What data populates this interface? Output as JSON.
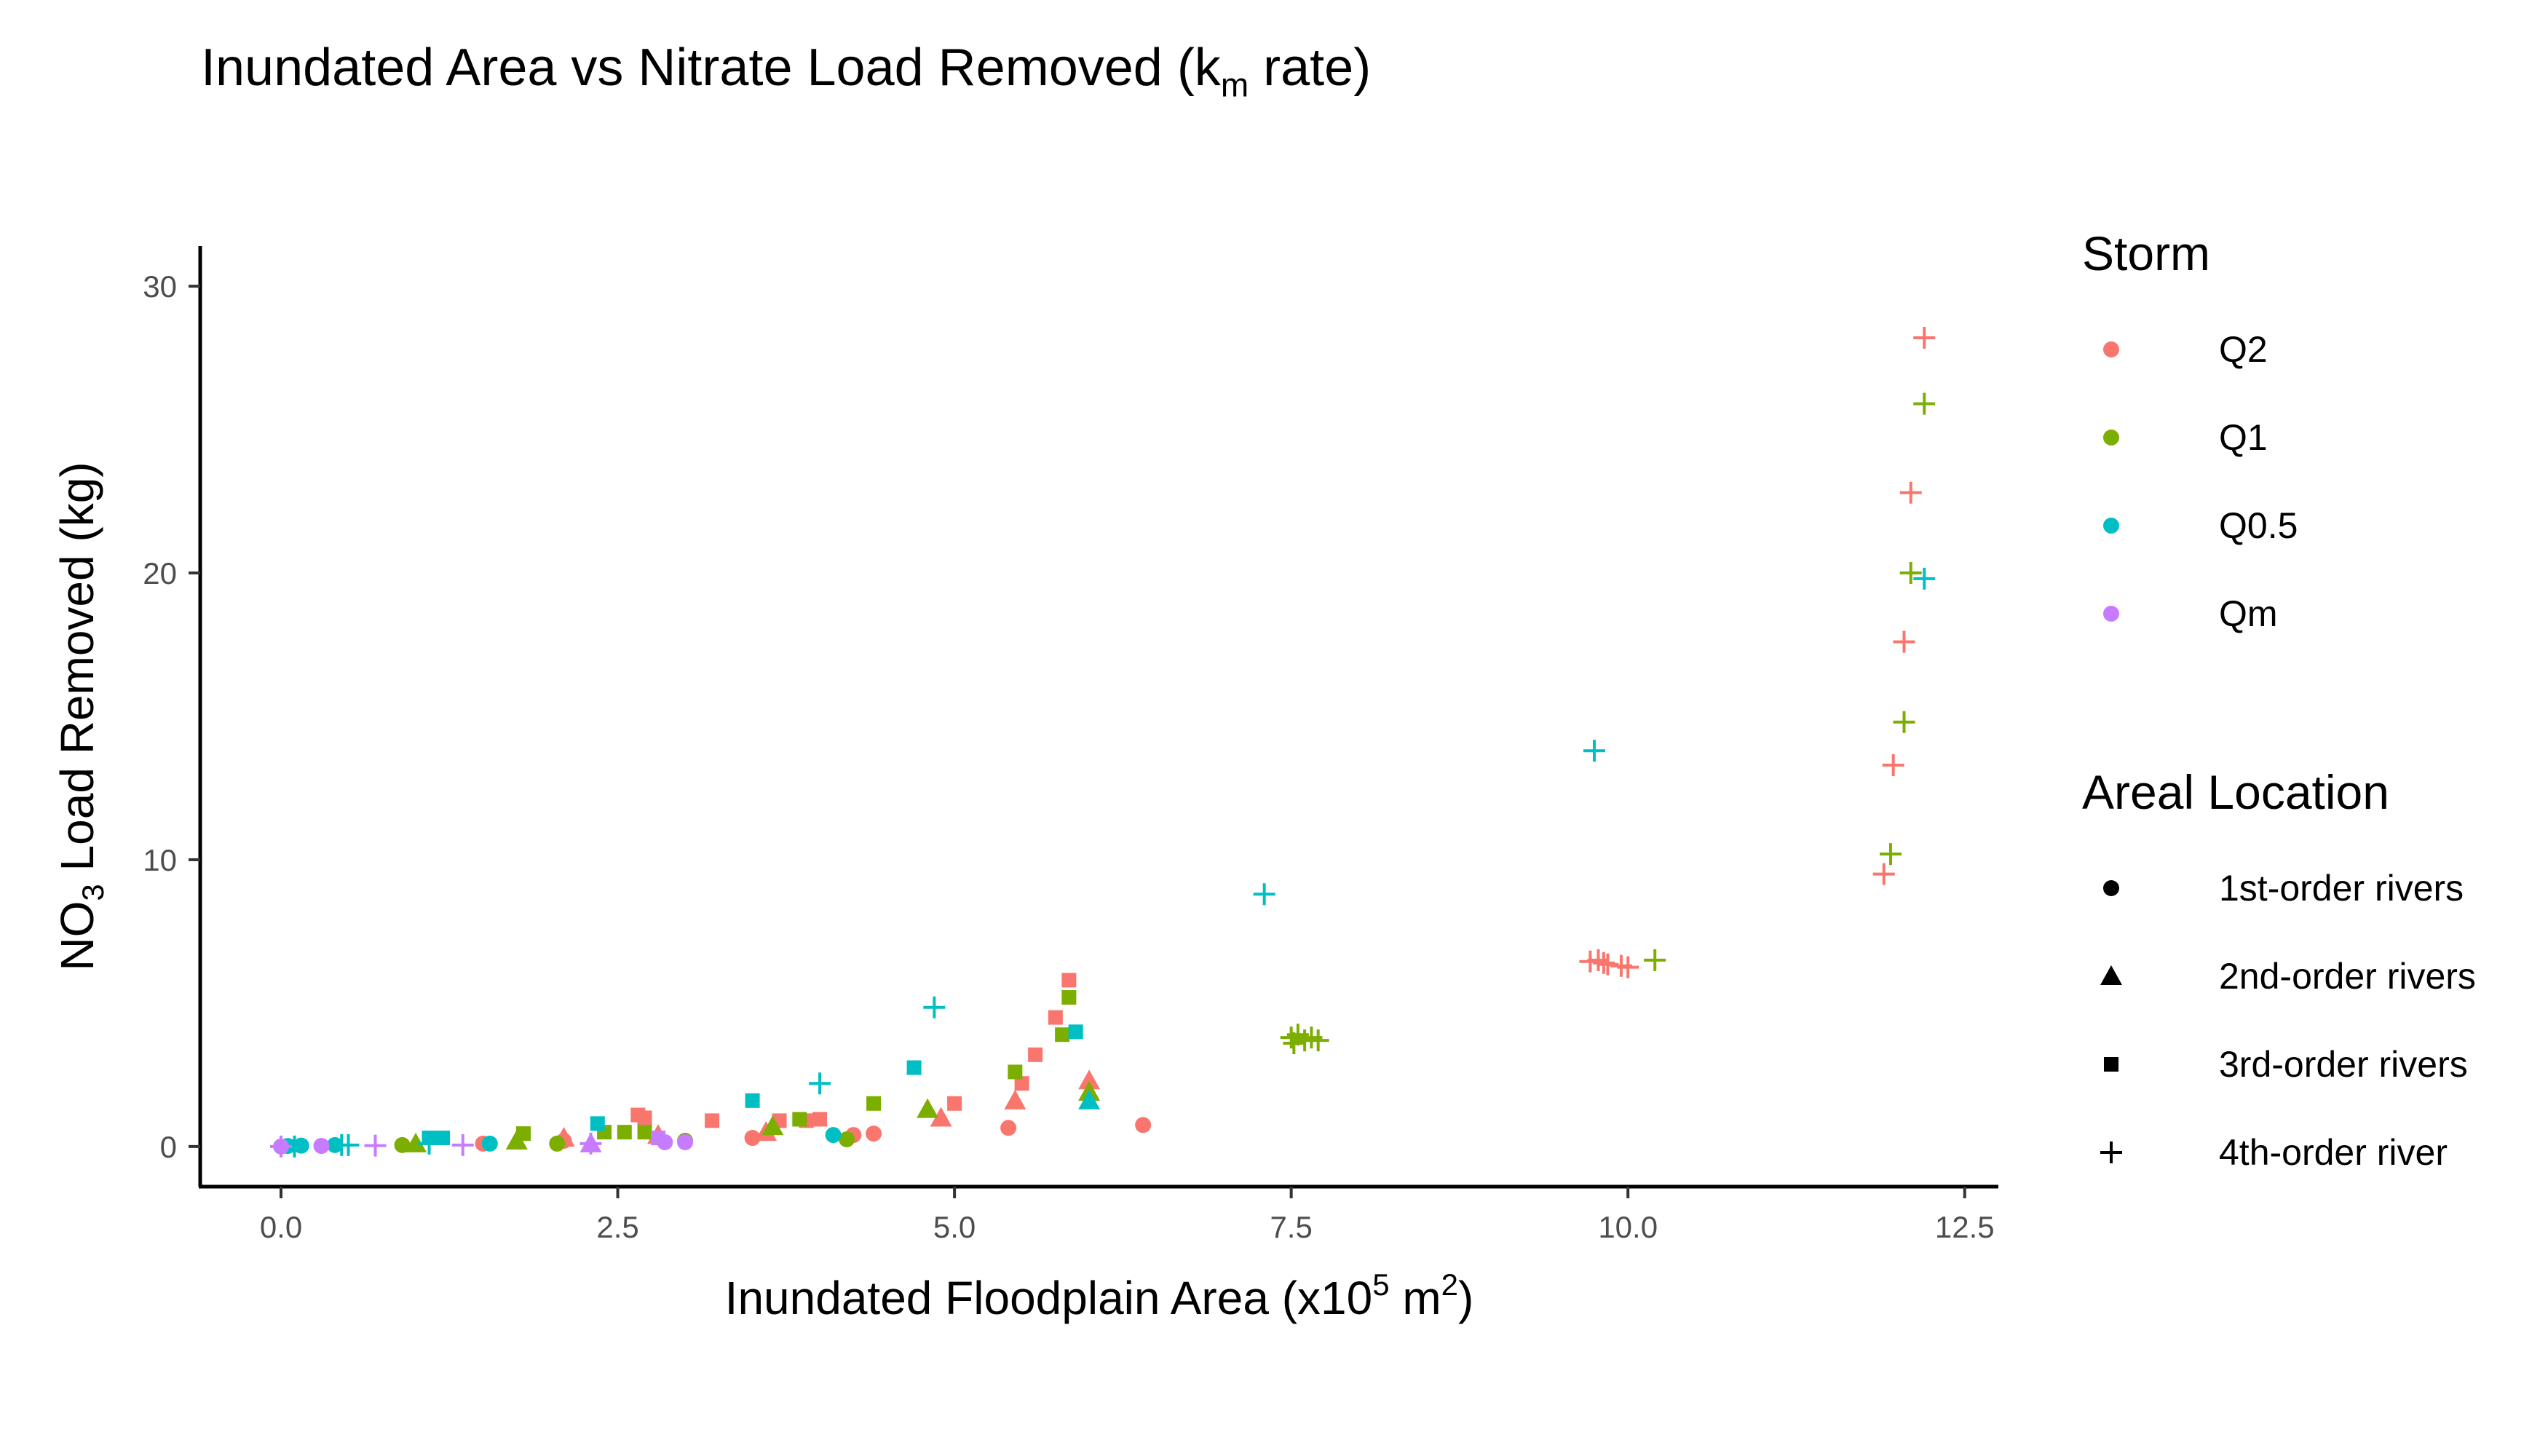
{
  "chart_data": {
    "type": "scatter",
    "title": "Inundated Area vs Nitrate Load Removed (k",
    "title_sub": "m",
    "title_tail": " rate)",
    "xlabel": "Inundated Floodplain Area (x10",
    "xlabel_sup": "5",
    "xlabel_mid": " m",
    "xlabel_sup2": "2",
    "xlabel_tail": ")",
    "ylabel": "NO",
    "ylabel_sub": "3",
    "ylabel_tail": " Load Removed (kg)",
    "xlim": [
      -0.6,
      12.75
    ],
    "ylim": [
      -1.4,
      31.4
    ],
    "x_ticks": [
      0.0,
      2.5,
      5.0,
      7.5,
      10.0,
      12.5
    ],
    "x_tick_labels": [
      "0.0",
      "2.5",
      "5.0",
      "7.5",
      "10.0",
      "12.5"
    ],
    "y_ticks": [
      0,
      10,
      20,
      30
    ],
    "y_tick_labels": [
      "0",
      "10",
      "20",
      "30"
    ],
    "grid": false,
    "legend_placement": "right",
    "storm_legend": {
      "title": "Storm",
      "items": [
        {
          "label": "Q2",
          "color": "#F8766D"
        },
        {
          "label": "Q1",
          "color": "#7CAE00"
        },
        {
          "label": "Q0.5",
          "color": "#00BFC4"
        },
        {
          "label": "Qm",
          "color": "#C77CFF"
        }
      ]
    },
    "location_legend": {
      "title": "Areal Location",
      "items": [
        {
          "label": "1st-order rivers",
          "shape": "circle"
        },
        {
          "label": "2nd-order rivers",
          "shape": "triangle"
        },
        {
          "label": "3rd-order rivers",
          "shape": "square"
        },
        {
          "label": "4th-order river",
          "shape": "plus"
        }
      ]
    },
    "series": [
      {
        "storm": "Q2",
        "location": "1st-order rivers",
        "points": [
          [
            1.5,
            0.1
          ],
          [
            2.1,
            0.2
          ],
          [
            3.5,
            0.3
          ],
          [
            4.25,
            0.4
          ],
          [
            4.4,
            0.45
          ],
          [
            5.4,
            0.65
          ],
          [
            6.4,
            0.75
          ]
        ]
      },
      {
        "storm": "Q2",
        "location": "2nd-order rivers",
        "points": [
          [
            2.1,
            0.3
          ],
          [
            2.8,
            0.4
          ],
          [
            3.6,
            0.5
          ],
          [
            4.9,
            1.0
          ],
          [
            5.45,
            1.6
          ],
          [
            6.0,
            2.3
          ]
        ]
      },
      {
        "storm": "Q2",
        "location": "3rd-order rivers",
        "points": [
          [
            2.65,
            1.1
          ],
          [
            2.7,
            1.0
          ],
          [
            3.2,
            0.9
          ],
          [
            3.7,
            0.9
          ],
          [
            3.9,
            0.9
          ],
          [
            4.0,
            0.95
          ],
          [
            5.0,
            1.5
          ],
          [
            5.5,
            2.2
          ],
          [
            5.6,
            3.2
          ],
          [
            5.75,
            4.5
          ],
          [
            5.85,
            5.8
          ]
        ]
      },
      {
        "storm": "Q2",
        "location": "4th-order river",
        "points": [
          [
            9.72,
            6.45
          ],
          [
            9.78,
            6.5
          ],
          [
            9.82,
            6.4
          ],
          [
            9.85,
            6.35
          ],
          [
            9.95,
            6.3
          ],
          [
            10.0,
            6.25
          ],
          [
            11.9,
            9.5
          ],
          [
            11.97,
            13.3
          ],
          [
            12.05,
            17.6
          ],
          [
            12.1,
            22.8
          ],
          [
            12.2,
            28.2
          ]
        ]
      },
      {
        "storm": "Q1",
        "location": "1st-order rivers",
        "points": [
          [
            0.9,
            0.05
          ],
          [
            2.05,
            0.1
          ],
          [
            3.0,
            0.2
          ],
          [
            4.2,
            0.25
          ]
        ]
      },
      {
        "storm": "Q1",
        "location": "2nd-order rivers",
        "points": [
          [
            1.0,
            0.1
          ],
          [
            1.75,
            0.2
          ],
          [
            3.65,
            0.7
          ],
          [
            4.8,
            1.3
          ],
          [
            6.0,
            1.9
          ]
        ]
      },
      {
        "storm": "Q1",
        "location": "3rd-order rivers",
        "points": [
          [
            1.8,
            0.45
          ],
          [
            2.4,
            0.5
          ],
          [
            2.55,
            0.5
          ],
          [
            2.7,
            0.5
          ],
          [
            3.85,
            0.95
          ],
          [
            4.4,
            1.5
          ],
          [
            5.45,
            2.6
          ],
          [
            5.8,
            3.9
          ],
          [
            5.85,
            5.2
          ]
        ]
      },
      {
        "storm": "Q1",
        "location": "4th-order river",
        "points": [
          [
            7.5,
            3.8
          ],
          [
            7.52,
            3.6
          ],
          [
            7.55,
            3.9
          ],
          [
            7.6,
            3.7
          ],
          [
            7.65,
            3.8
          ],
          [
            7.7,
            3.7
          ],
          [
            10.2,
            6.5
          ],
          [
            11.95,
            10.2
          ],
          [
            12.05,
            14.8
          ],
          [
            12.1,
            20.0
          ],
          [
            12.2,
            25.9
          ]
        ]
      },
      {
        "storm": "Q0.5",
        "location": "1st-order rivers",
        "points": [
          [
            0.05,
            0.02
          ],
          [
            0.15,
            0.03
          ],
          [
            0.4,
            0.05
          ],
          [
            1.55,
            0.1
          ],
          [
            4.1,
            0.4
          ]
        ]
      },
      {
        "storm": "Q0.5",
        "location": "2nd-order rivers",
        "points": [
          [
            6.0,
            1.6
          ]
        ]
      },
      {
        "storm": "Q0.5",
        "location": "3rd-order rivers",
        "points": [
          [
            1.1,
            0.3
          ],
          [
            1.2,
            0.3
          ],
          [
            2.35,
            0.8
          ],
          [
            3.5,
            1.6
          ],
          [
            4.7,
            2.75
          ],
          [
            5.9,
            4.0
          ]
        ]
      },
      {
        "storm": "Q0.5",
        "location": "4th-order river",
        "points": [
          [
            0.1,
            0.0
          ],
          [
            0.45,
            0.05
          ],
          [
            0.5,
            0.05
          ],
          [
            1.1,
            0.1
          ],
          [
            4.0,
            2.2
          ],
          [
            4.85,
            4.85
          ],
          [
            7.3,
            8.8
          ],
          [
            9.75,
            13.8
          ],
          [
            12.2,
            19.8
          ]
        ]
      },
      {
        "storm": "Qm",
        "location": "1st-order rivers",
        "points": [
          [
            0.0,
            0.0
          ],
          [
            0.3,
            0.02
          ],
          [
            2.85,
            0.15
          ],
          [
            3.0,
            0.15
          ]
        ]
      },
      {
        "storm": "Qm",
        "location": "2nd-order rivers",
        "points": [
          [
            2.3,
            0.1
          ]
        ]
      },
      {
        "storm": "Qm",
        "location": "3rd-order rivers",
        "points": [
          [
            2.8,
            0.3
          ]
        ]
      },
      {
        "storm": "Qm",
        "location": "4th-order river",
        "points": [
          [
            0.0,
            0.0
          ],
          [
            0.7,
            0.03
          ],
          [
            1.35,
            0.05
          ],
          [
            2.3,
            0.1
          ]
        ]
      }
    ]
  }
}
